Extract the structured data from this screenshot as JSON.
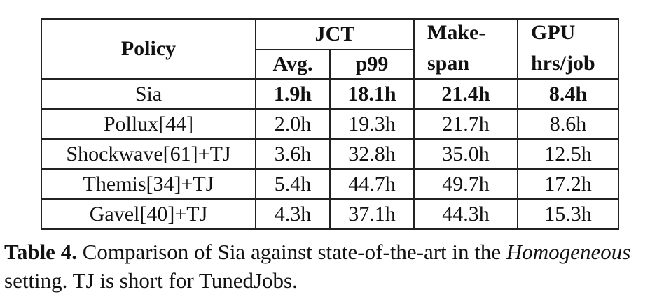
{
  "table": {
    "header": {
      "policy": "Policy",
      "jct": "JCT",
      "avg": "Avg.",
      "p99": "p99",
      "makespan_line1": "Make-",
      "makespan_line2": "span",
      "gpu_line1": "GPU",
      "gpu_line2": "hrs/job"
    },
    "rows": [
      {
        "policy": "Sia",
        "avg": "1.9h",
        "p99": "18.1h",
        "makespan": "21.4h",
        "gpu": "8.4h",
        "bold": true
      },
      {
        "policy": "Pollux[44]",
        "avg": "2.0h",
        "p99": "19.3h",
        "makespan": "21.7h",
        "gpu": "8.6h",
        "bold": false
      },
      {
        "policy": "Shockwave[61]+TJ",
        "avg": "3.6h",
        "p99": "32.8h",
        "makespan": "35.0h",
        "gpu": "12.5h",
        "bold": false
      },
      {
        "policy": "Themis[34]+TJ",
        "avg": "5.4h",
        "p99": "44.7h",
        "makespan": "49.7h",
        "gpu": "17.2h",
        "bold": false
      },
      {
        "policy": "Gavel[40]+TJ",
        "avg": "4.3h",
        "p99": "37.1h",
        "makespan": "44.3h",
        "gpu": "15.3h",
        "bold": false
      }
    ]
  },
  "caption": {
    "label": "Table 4.",
    "text_1": " Comparison of Sia against state-of-the-art in the ",
    "italic": "Homogeneous",
    "text_2": " setting. TJ is short for TunedJobs."
  }
}
